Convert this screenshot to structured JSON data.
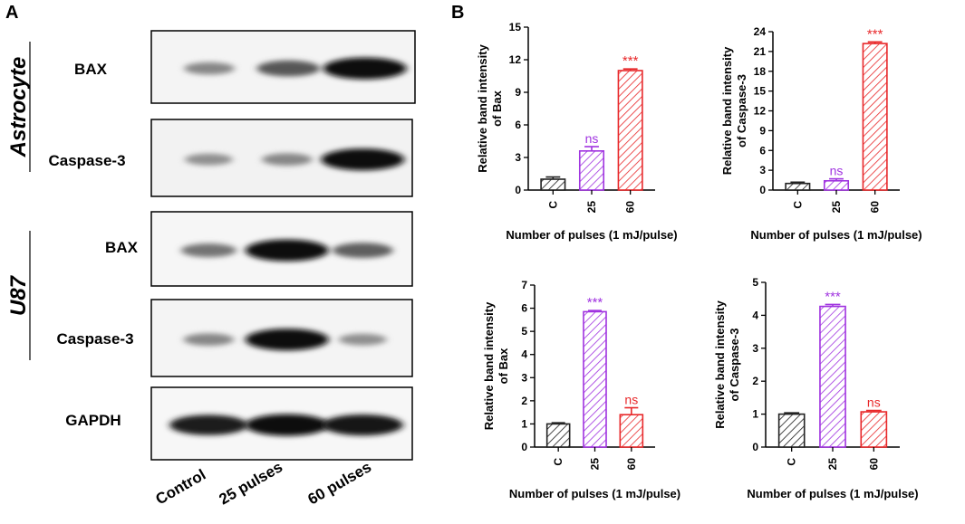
{
  "panels": {
    "a": "A",
    "b": "B"
  },
  "blot": {
    "groups": [
      "Astrocyte",
      "U87"
    ],
    "rows": [
      "BAX",
      "Caspase-3",
      "BAX",
      "Caspase-3",
      "GAPDH"
    ],
    "lanes": [
      "Control",
      "25 pulses",
      "60 pulses"
    ],
    "band_intensity": [
      [
        0.35,
        0.6,
        1.0
      ],
      [
        0.3,
        0.35,
        1.0
      ],
      [
        0.45,
        1.0,
        0.55
      ],
      [
        0.35,
        1.0,
        0.3
      ],
      [
        0.9,
        1.0,
        0.95
      ]
    ]
  },
  "colors": {
    "control": "#222222",
    "p25": "#a033e0",
    "p60": "#e8282a"
  },
  "chart_data": [
    {
      "type": "bar",
      "categories": [
        "C",
        "25",
        "60"
      ],
      "values": [
        1.0,
        3.6,
        11.0
      ],
      "errors": [
        0.2,
        0.4,
        0.15
      ],
      "significance": [
        "",
        "ns",
        "***"
      ],
      "ylabel": [
        "Relative band intensity",
        "of Bax"
      ],
      "xlabel": "Number of pulses (1 mJ/pulse)",
      "ylim": [
        0,
        15
      ],
      "yticks": [
        0,
        3,
        6,
        9,
        12,
        15
      ]
    },
    {
      "type": "bar",
      "categories": [
        "C",
        "25",
        "60"
      ],
      "values": [
        1.0,
        1.4,
        22.2
      ],
      "errors": [
        0.2,
        0.3,
        0.25
      ],
      "significance": [
        "",
        "ns",
        "***"
      ],
      "ylabel": [
        "Relative band intensity",
        "of Caspase-3"
      ],
      "xlabel": "Number of pulses (1 mJ/pulse)",
      "ylim": [
        0,
        24
      ],
      "yticks": [
        0,
        3,
        6,
        9,
        12,
        15,
        18,
        21,
        24
      ]
    },
    {
      "type": "bar",
      "categories": [
        "C",
        "25",
        "60"
      ],
      "values": [
        1.0,
        5.85,
        1.4
      ],
      "errors": [
        0.05,
        0.05,
        0.3
      ],
      "significance": [
        "",
        "***",
        "ns"
      ],
      "ylabel": [
        "Relative band intensity",
        "of Bax"
      ],
      "xlabel": "Number of pulses (1 mJ/pulse)",
      "ylim": [
        0,
        7
      ],
      "yticks": [
        0,
        1,
        2,
        3,
        4,
        5,
        6,
        7
      ]
    },
    {
      "type": "bar",
      "categories": [
        "C",
        "25",
        "60"
      ],
      "values": [
        1.0,
        4.27,
        1.07
      ],
      "errors": [
        0.04,
        0.06,
        0.04
      ],
      "significance": [
        "",
        "***",
        "ns"
      ],
      "ylabel": [
        "Relative band intensity",
        "of Caspase-3"
      ],
      "xlabel": "Number of pulses (1 mJ/pulse)",
      "ylim": [
        0,
        5
      ],
      "yticks": [
        0,
        1,
        2,
        3,
        4,
        5
      ]
    }
  ]
}
